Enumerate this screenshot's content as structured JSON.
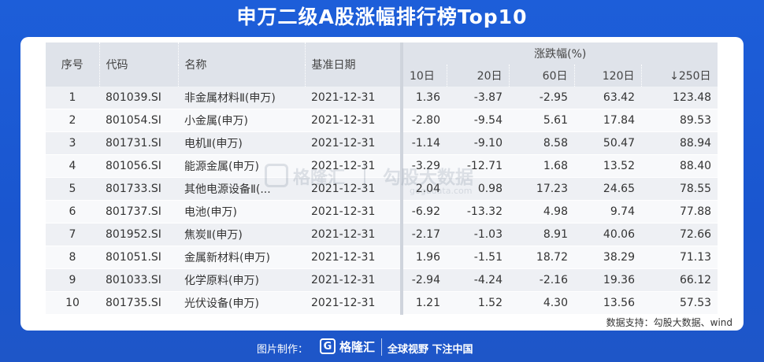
{
  "title": "申万二级A股涨幅排行榜Top10",
  "table": {
    "headers": {
      "index": "序号",
      "code": "代码",
      "name": "名称",
      "date": "基准日期",
      "group": "涨跌幅(%)",
      "d10": "10日",
      "d20": "20日",
      "d60": "60日",
      "d120": "120日",
      "d250": "↓250日"
    },
    "rows": [
      {
        "index": "1",
        "code": "801039.SI",
        "name": "非金属材料Ⅱ(申万)",
        "date": "2021-12-31",
        "d10": "1.36",
        "d20": "-3.87",
        "d60": "-2.95",
        "d120": "63.42",
        "d250": "123.48"
      },
      {
        "index": "2",
        "code": "801054.SI",
        "name": "小金属(申万)",
        "date": "2021-12-31",
        "d10": "-2.80",
        "d20": "-9.54",
        "d60": "5.61",
        "d120": "17.84",
        "d250": "89.53"
      },
      {
        "index": "3",
        "code": "801731.SI",
        "name": "电机Ⅱ(申万)",
        "date": "2021-12-31",
        "d10": "-1.14",
        "d20": "-9.10",
        "d60": "8.58",
        "d120": "50.47",
        "d250": "88.94"
      },
      {
        "index": "4",
        "code": "801056.SI",
        "name": "能源金属(申万)",
        "date": "2021-12-31",
        "d10": "-3.29",
        "d20": "-12.71",
        "d60": "1.68",
        "d120": "13.52",
        "d250": "88.40"
      },
      {
        "index": "5",
        "code": "801733.SI",
        "name": "其他电源设备Ⅱ(...",
        "date": "2021-12-31",
        "d10": "2.04",
        "d20": "0.98",
        "d60": "17.23",
        "d120": "24.65",
        "d250": "78.55"
      },
      {
        "index": "6",
        "code": "801737.SI",
        "name": "电池(申万)",
        "date": "2021-12-31",
        "d10": "-6.92",
        "d20": "-13.32",
        "d60": "4.98",
        "d120": "9.74",
        "d250": "77.88"
      },
      {
        "index": "7",
        "code": "801952.SI",
        "name": "焦炭Ⅱ(申万)",
        "date": "2021-12-31",
        "d10": "-2.17",
        "d20": "-1.03",
        "d60": "8.91",
        "d120": "40.06",
        "d250": "72.66"
      },
      {
        "index": "8",
        "code": "801051.SI",
        "name": "金属新材料(申万)",
        "date": "2021-12-31",
        "d10": "1.96",
        "d20": "-1.51",
        "d60": "18.72",
        "d120": "38.29",
        "d250": "71.13"
      },
      {
        "index": "9",
        "code": "801033.SI",
        "name": "化学原料(申万)",
        "date": "2021-12-31",
        "d10": "-2.94",
        "d20": "-4.24",
        "d60": "-2.16",
        "d120": "19.36",
        "d250": "66.12"
      },
      {
        "index": "10",
        "code": "801735.SI",
        "name": "光伏设备(申万)",
        "date": "2021-12-31",
        "d10": "1.21",
        "d20": "1.52",
        "d60": "4.30",
        "d120": "13.56",
        "d250": "57.53"
      }
    ]
  },
  "watermark": {
    "brand": "格隆汇",
    "data_brand": "勾股大数据",
    "data_url": "gogudata.com"
  },
  "source_note": "数据支持：勾股大数据、wind",
  "footer": {
    "credit": "图片制作：",
    "logo_mark": "G",
    "logo_text": "格隆汇",
    "slogan": "全球视野 下注中国"
  },
  "colors": {
    "background": "#1d5ed9",
    "header_bg": "#dfe3ea",
    "row_odd": "#eef0f4",
    "row_even": "#f8f9fb"
  }
}
